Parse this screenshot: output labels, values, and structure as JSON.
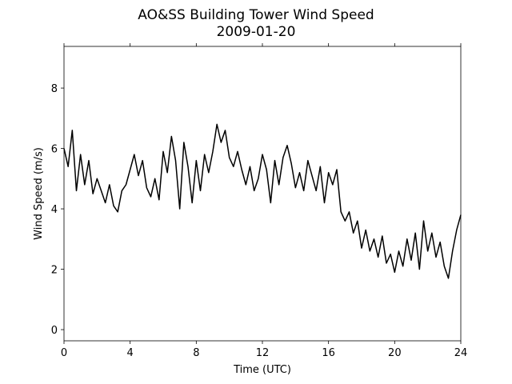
{
  "chart_data": {
    "type": "line",
    "title": "AO&SS Building Tower Wind Speed",
    "subtitle": "2009-01-20",
    "x_label": "Time (UTC)",
    "y_label": "Wind Speed (m/s)",
    "x": [
      0,
      0.25,
      0.5,
      0.75,
      1,
      1.25,
      1.5,
      1.75,
      2,
      2.25,
      2.5,
      2.75,
      3,
      3.25,
      3.5,
      3.75,
      4,
      4.25,
      4.5,
      4.75,
      5,
      5.25,
      5.5,
      5.75,
      6,
      6.25,
      6.5,
      6.75,
      7,
      7.25,
      7.5,
      7.75,
      8,
      8.25,
      8.5,
      8.75,
      9,
      9.25,
      9.5,
      9.75,
      10,
      10.25,
      10.5,
      10.75,
      11,
      11.25,
      11.5,
      11.75,
      12,
      12.25,
      12.5,
      12.75,
      13,
      13.25,
      13.5,
      13.75,
      14,
      14.25,
      14.5,
      14.75,
      15,
      15.25,
      15.5,
      15.75,
      16,
      16.25,
      16.5,
      16.75,
      17,
      17.25,
      17.5,
      17.75,
      18,
      18.25,
      18.5,
      18.75,
      19,
      19.25,
      19.5,
      19.75,
      20,
      20.25,
      20.5,
      20.75,
      21,
      21.25,
      21.5,
      21.75,
      22,
      22.25,
      22.5,
      22.75,
      23,
      23.25,
      23.5,
      23.75,
      24
    ],
    "series": [
      {
        "name": "Wind Speed",
        "color": "#000000",
        "values": [
          6.0,
          5.4,
          6.6,
          4.6,
          5.8,
          4.8,
          5.6,
          4.5,
          5.0,
          4.6,
          4.2,
          4.8,
          4.1,
          3.9,
          4.6,
          4.8,
          5.3,
          5.8,
          5.1,
          5.6,
          4.7,
          4.4,
          5.0,
          4.3,
          5.9,
          5.2,
          6.4,
          5.6,
          4.0,
          6.2,
          5.4,
          4.2,
          5.6,
          4.6,
          5.8,
          5.2,
          5.9,
          6.8,
          6.2,
          6.6,
          5.7,
          5.4,
          5.9,
          5.3,
          4.8,
          5.4,
          4.6,
          5.0,
          5.8,
          5.3,
          4.2,
          5.6,
          4.8,
          5.7,
          6.1,
          5.5,
          4.7,
          5.2,
          4.6,
          5.6,
          5.1,
          4.6,
          5.4,
          4.2,
          5.2,
          4.8,
          5.3,
          3.9,
          3.6,
          3.9,
          3.2,
          3.6,
          2.7,
          3.3,
          2.6,
          3.0,
          2.4,
          3.1,
          2.2,
          2.5,
          1.9,
          2.6,
          2.1,
          3.0,
          2.3,
          3.2,
          2.0,
          3.6,
          2.6,
          3.2,
          2.4,
          2.9,
          2.1,
          1.7,
          2.6,
          3.3,
          3.8
        ]
      }
    ],
    "xlim": [
      0,
      24
    ],
    "xticks": [
      0,
      4,
      8,
      12,
      16,
      20,
      24
    ],
    "ylim": [
      -0.37,
      9.38
    ],
    "yticks": [
      0,
      2,
      4,
      6,
      8
    ],
    "grid": false
  }
}
